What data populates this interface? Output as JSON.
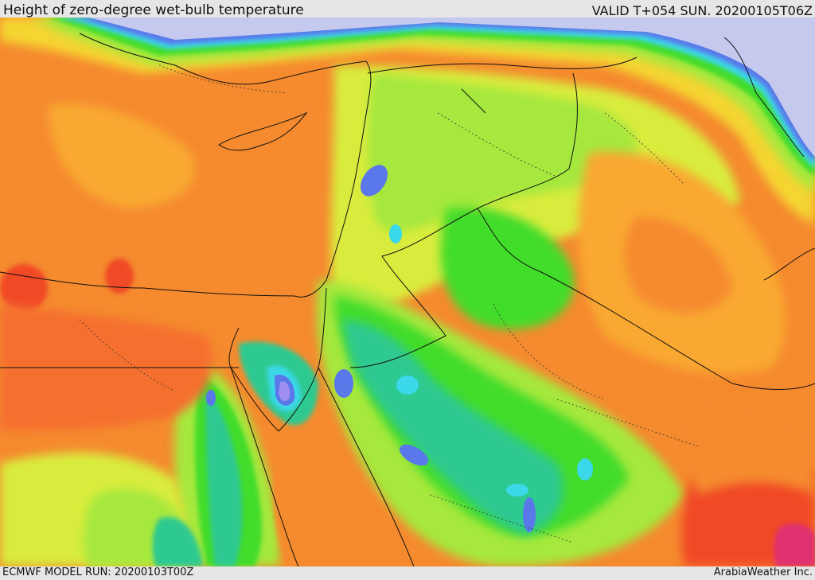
{
  "header": {
    "title": "Height of zero-degree wet-bulb temperature",
    "valid_time": "VALID T+054 SUN. 20200105T06Z"
  },
  "footer": {
    "model_run": "ECMWF MODEL RUN: 20200103T00Z",
    "credit": "ArabiaWeather Inc."
  },
  "palette": {
    "deep_red": "#f04a28",
    "red_orange": "#f5702e",
    "orange": "#f58a2e",
    "light_orange": "#f9a830",
    "yellow": "#f5d531",
    "yellow_green": "#d9ec3c",
    "lime": "#a6e83c",
    "green": "#43dc2c",
    "teal_green": "#2fc990",
    "cyan": "#3ad8e8",
    "blue": "#5a78ea",
    "violet": "#a08ef0",
    "pale_lavender": "#c5c9ee",
    "magenta": "#e03070"
  }
}
